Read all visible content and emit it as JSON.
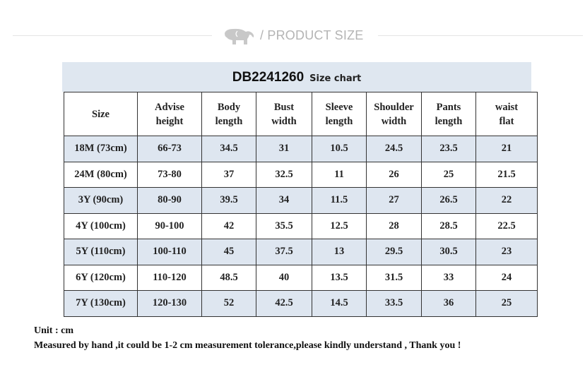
{
  "banner": {
    "logo_icon": "elephant-icon",
    "text": "/ PRODUCT SIZE"
  },
  "chart": {
    "code": "DB2241260",
    "subtitle": "Size chart",
    "headers": [
      "Size",
      "Advise height",
      "Body length",
      "Bust width",
      "Sleeve length",
      "Shoulder width",
      "Pants length",
      "waist flat"
    ],
    "rows": [
      [
        "18M (73cm)",
        "66-73",
        "34.5",
        "31",
        "10.5",
        "24.5",
        "23.5",
        "21"
      ],
      [
        "24M (80cm)",
        "73-80",
        "37",
        "32.5",
        "11",
        "26",
        "25",
        "21.5"
      ],
      [
        "3Y (90cm)",
        "80-90",
        "39.5",
        "34",
        "11.5",
        "27",
        "26.5",
        "22"
      ],
      [
        "4Y (100cm)",
        "90-100",
        "42",
        "35.5",
        "12.5",
        "28",
        "28.5",
        "22.5"
      ],
      [
        "5Y (110cm)",
        "100-110",
        "45",
        "37.5",
        "13",
        "29.5",
        "30.5",
        "23"
      ],
      [
        "6Y (120cm)",
        "110-120",
        "48.5",
        "40",
        "13.5",
        "31.5",
        "33",
        "24"
      ],
      [
        "7Y (130cm)",
        "120-130",
        "52",
        "42.5",
        "14.5",
        "33.5",
        "36",
        "25"
      ]
    ]
  },
  "notes": {
    "unit": "Unit : cm",
    "tolerance": "Measured by hand ,it could be 1-2 cm measurement tolerance,please kindly understand , Thank you !"
  },
  "colors": {
    "band": "#dfe7f0",
    "odd_row": "#dee6f0",
    "border": "#333333"
  }
}
